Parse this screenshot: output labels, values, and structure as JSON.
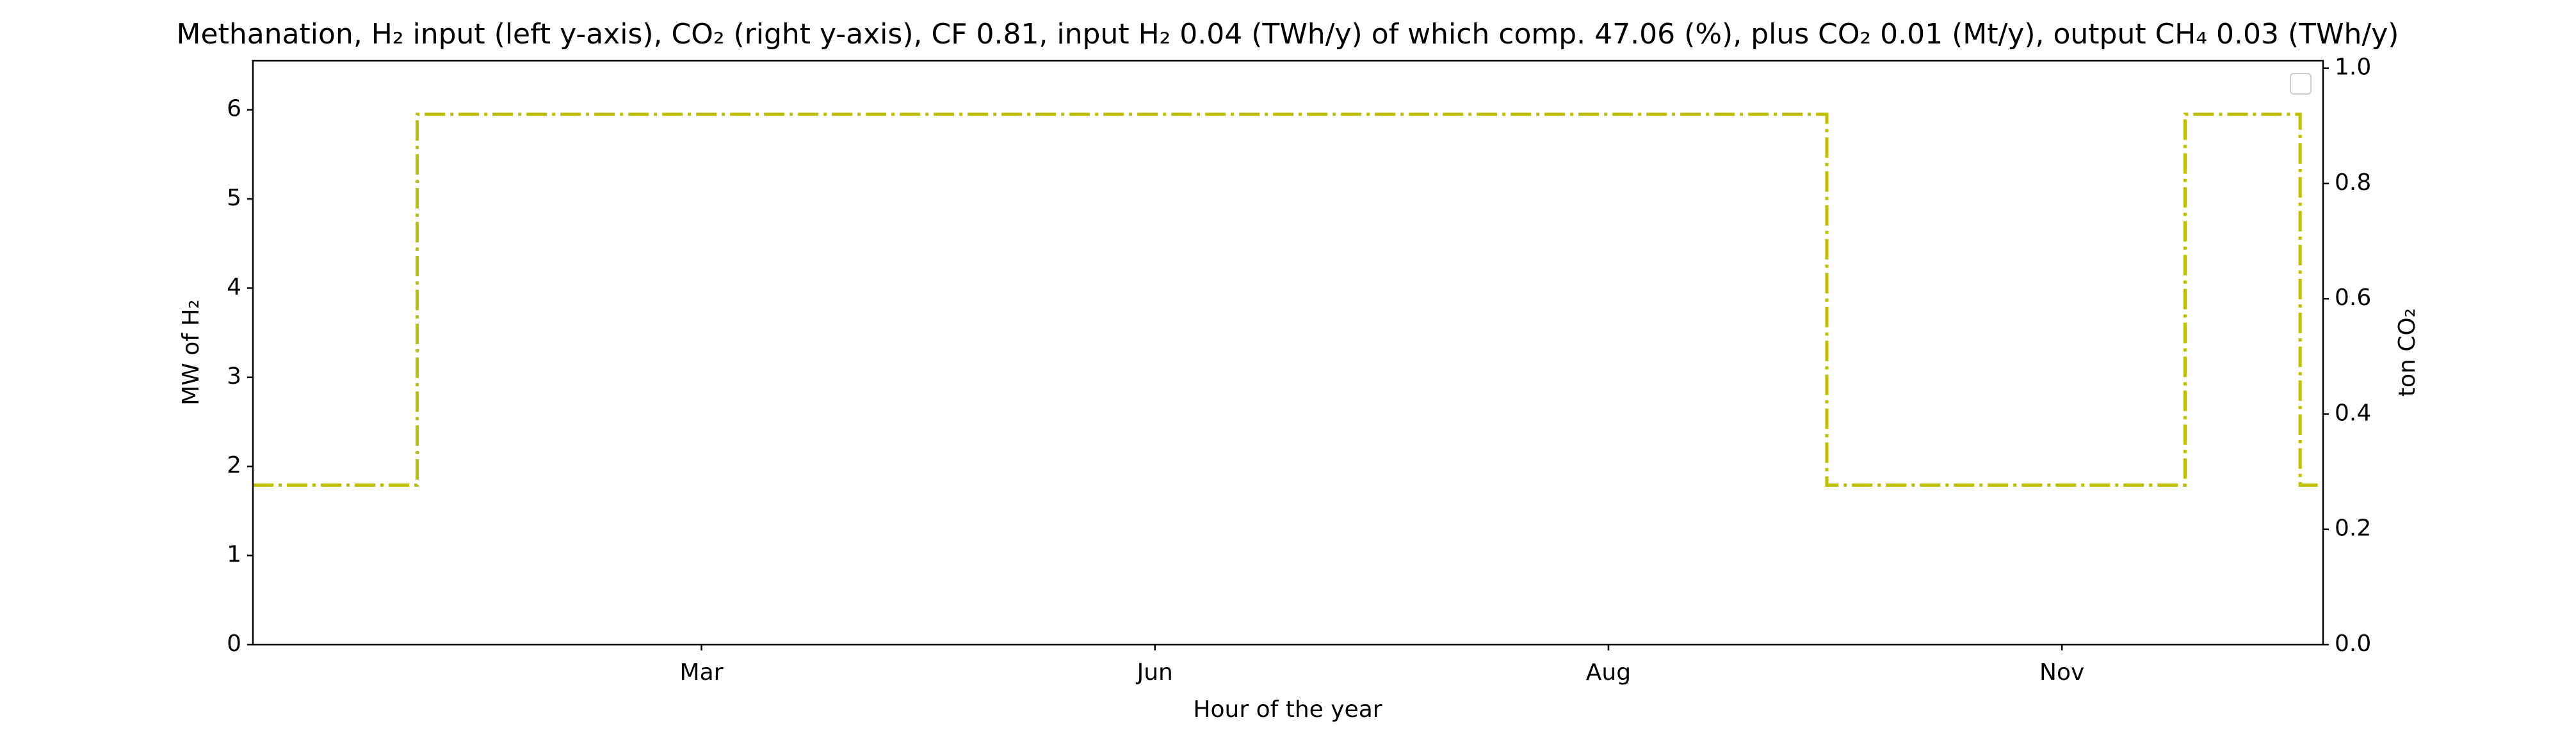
{
  "chart_data": {
    "type": "line",
    "title": "Methanation, H₂ input (left y-axis), CO₂ (right y-axis), CF 0.81, input H₂ 0.04 (TWh/y) of which comp. 47.06 (%), plus CO₂ 0.01 (Mt/y), output CH₄ 0.03 (TWh/y)",
    "xlabel": "Hour of the year",
    "ylabel": "MW of H₂",
    "y2label": "ton CO₂",
    "x": [
      0,
      695,
      6660,
      8176,
      8663,
      8760
    ],
    "series": [
      {
        "color": "#bfbf00",
        "linestyle": "dashdot",
        "drawstyle": "steps-post",
        "values": [
          1.79,
          5.95,
          1.79,
          5.95,
          1.79,
          1.79
        ]
      }
    ],
    "xlim": [
      0,
      8760
    ],
    "xticks": [
      {
        "value": 1898,
        "label": "Mar"
      },
      {
        "value": 3817,
        "label": "Jun"
      },
      {
        "value": 5736,
        "label": "Aug"
      },
      {
        "value": 7655,
        "label": "Nov"
      }
    ],
    "ylim": [
      0,
      6.55
    ],
    "yticks": [
      0,
      1,
      2,
      3,
      4,
      5,
      6
    ],
    "y2lim": [
      0,
      1.013
    ],
    "y2ticks": [
      {
        "value": 0,
        "label": "0.0"
      },
      0.2,
      0.4,
      0.6,
      0.8,
      {
        "value": 1,
        "label": "1.0"
      }
    ]
  }
}
